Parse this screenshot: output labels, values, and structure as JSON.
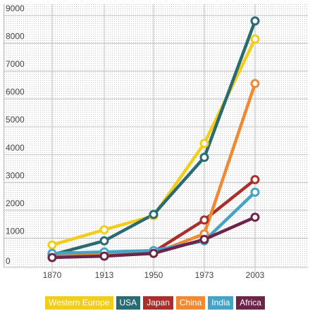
{
  "chart_data": {
    "type": "line",
    "x": [
      "1870",
      "1913",
      "1950",
      "1973",
      "2003"
    ],
    "ylim": [
      0,
      9000
    ],
    "yticks": [
      0,
      1000,
      2000,
      3000,
      4000,
      5000,
      6000,
      7000,
      8000,
      9000
    ],
    "grid": true,
    "legend_position": "bottom",
    "series": [
      {
        "name": "Western Europe",
        "color": "#f2cd19",
        "values": [
          500,
          1050,
          1550,
          4150,
          7900
        ]
      },
      {
        "name": "USA",
        "color": "#2a6b73",
        "values": [
          150,
          650,
          1600,
          3650,
          8550
        ]
      },
      {
        "name": "Japan",
        "color": "#a82f2b",
        "values": [
          150,
          100,
          250,
          1400,
          2850
        ]
      },
      {
        "name": "China",
        "color": "#f08a32",
        "values": [
          100,
          150,
          200,
          900,
          6300
        ]
      },
      {
        "name": "India",
        "color": "#44a4c5",
        "values": [
          200,
          250,
          300,
          650,
          2400
        ]
      },
      {
        "name": "Africa",
        "color": "#6c2448",
        "values": [
          50,
          100,
          200,
          700,
          1500
        ]
      }
    ]
  }
}
